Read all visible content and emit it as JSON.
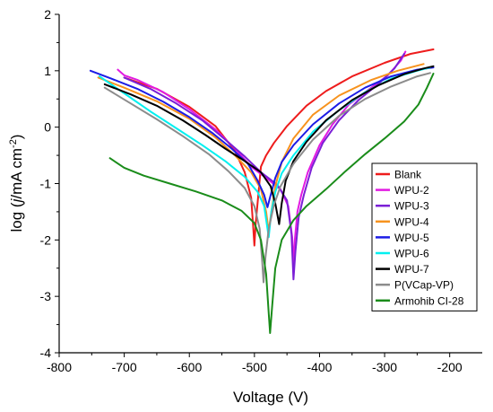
{
  "chart_data": {
    "type": "line",
    "title": "",
    "xlabel": "Voltage (V)",
    "ylabel_main": "log (",
    "ylabel_j": "j",
    "ylabel_units": "/mA cm",
    "ylabel_sup": "-2",
    "ylabel_close": ")",
    "xlim": [
      -800,
      -150
    ],
    "ylim": [
      -4,
      2
    ],
    "xticks": [
      -800,
      -700,
      -600,
      -500,
      -400,
      -300,
      -200
    ],
    "yticks": [
      -4,
      -3,
      -2,
      -1,
      0,
      1,
      2
    ],
    "grid": false,
    "legend_position": "right",
    "series": [
      {
        "name": "Blank",
        "color": "#ee1c1c",
        "points": [
          [
            -700,
            0.88
          ],
          [
            -650,
            0.68
          ],
          [
            -600,
            0.36
          ],
          [
            -560,
            0.02
          ],
          [
            -530,
            -0.42
          ],
          [
            -515,
            -0.8
          ],
          [
            -505,
            -1.25
          ],
          [
            -502,
            -1.75
          ],
          [
            -500,
            -2.1
          ],
          [
            -498,
            -1.7
          ],
          [
            -494,
            -1.2
          ],
          [
            -490,
            -0.7
          ],
          [
            -482,
            -0.5
          ],
          [
            -470,
            -0.28
          ],
          [
            -450,
            0.02
          ],
          [
            -420,
            0.38
          ],
          [
            -390,
            0.64
          ],
          [
            -350,
            0.9
          ],
          [
            -300,
            1.14
          ],
          [
            -260,
            1.3
          ],
          [
            -225,
            1.38
          ]
        ]
      },
      {
        "name": "WPU-2",
        "color": "#e21ae2",
        "points": [
          [
            -710,
            1.02
          ],
          [
            -700,
            0.92
          ],
          [
            -680,
            0.84
          ],
          [
            -640,
            0.62
          ],
          [
            -600,
            0.32
          ],
          [
            -560,
            -0.04
          ],
          [
            -530,
            -0.38
          ],
          [
            -505,
            -0.7
          ],
          [
            -480,
            -0.92
          ],
          [
            -460,
            -1.1
          ],
          [
            -448,
            -1.4
          ],
          [
            -442,
            -1.95
          ],
          [
            -440,
            -2.45
          ],
          [
            -438,
            -2.0
          ],
          [
            -434,
            -1.5
          ],
          [
            -428,
            -1.2
          ],
          [
            -418,
            -0.8
          ],
          [
            -400,
            -0.32
          ],
          [
            -380,
            0.05
          ],
          [
            -355,
            0.4
          ],
          [
            -325,
            0.66
          ],
          [
            -295,
            0.92
          ],
          [
            -275,
            1.18
          ],
          [
            -268,
            1.34
          ]
        ]
      },
      {
        "name": "WPU-3",
        "color": "#7b1fd6",
        "points": [
          [
            -700,
            0.88
          ],
          [
            -660,
            0.68
          ],
          [
            -620,
            0.42
          ],
          [
            -580,
            0.12
          ],
          [
            -545,
            -0.22
          ],
          [
            -515,
            -0.52
          ],
          [
            -490,
            -0.8
          ],
          [
            -465,
            -1.02
          ],
          [
            -450,
            -1.3
          ],
          [
            -443,
            -1.9
          ],
          [
            -440,
            -2.7
          ],
          [
            -437,
            -2.2
          ],
          [
            -432,
            -1.6
          ],
          [
            -424,
            -1.2
          ],
          [
            -412,
            -0.72
          ],
          [
            -395,
            -0.28
          ],
          [
            -370,
            0.12
          ],
          [
            -340,
            0.48
          ],
          [
            -310,
            0.76
          ],
          [
            -285,
            1.04
          ],
          [
            -270,
            1.3
          ]
        ]
      },
      {
        "name": "WPU-4",
        "color": "#f7931e",
        "points": [
          [
            -740,
            0.88
          ],
          [
            -700,
            0.7
          ],
          [
            -650,
            0.46
          ],
          [
            -600,
            0.15
          ],
          [
            -560,
            -0.18
          ],
          [
            -530,
            -0.5
          ],
          [
            -505,
            -0.8
          ],
          [
            -490,
            -1.1
          ],
          [
            -482,
            -1.5
          ],
          [
            -478,
            -1.85
          ],
          [
            -474,
            -1.5
          ],
          [
            -468,
            -1.05
          ],
          [
            -458,
            -0.62
          ],
          [
            -440,
            -0.2
          ],
          [
            -410,
            0.22
          ],
          [
            -370,
            0.56
          ],
          [
            -320,
            0.84
          ],
          [
            -280,
            1.0
          ],
          [
            -240,
            1.12
          ]
        ]
      },
      {
        "name": "WPU-5",
        "color": "#1c1ce6",
        "points": [
          [
            -752,
            1.0
          ],
          [
            -720,
            0.86
          ],
          [
            -680,
            0.68
          ],
          [
            -640,
            0.45
          ],
          [
            -600,
            0.18
          ],
          [
            -565,
            -0.1
          ],
          [
            -535,
            -0.38
          ],
          [
            -510,
            -0.65
          ],
          [
            -495,
            -0.95
          ],
          [
            -485,
            -1.2
          ],
          [
            -480,
            -1.42
          ],
          [
            -475,
            -1.2
          ],
          [
            -468,
            -0.9
          ],
          [
            -458,
            -0.62
          ],
          [
            -440,
            -0.32
          ],
          [
            -410,
            0.05
          ],
          [
            -370,
            0.42
          ],
          [
            -330,
            0.7
          ],
          [
            -290,
            0.9
          ],
          [
            -250,
            1.02
          ],
          [
            -225,
            1.06
          ]
        ]
      },
      {
        "name": "WPU-6",
        "color": "#00f0f0",
        "points": [
          [
            -738,
            0.9
          ],
          [
            -700,
            0.6
          ],
          [
            -660,
            0.28
          ],
          [
            -620,
            -0.02
          ],
          [
            -580,
            -0.32
          ],
          [
            -545,
            -0.6
          ],
          [
            -515,
            -0.88
          ],
          [
            -495,
            -1.15
          ],
          [
            -485,
            -1.4
          ],
          [
            -478,
            -1.95
          ],
          [
            -474,
            -1.5
          ],
          [
            -468,
            -1.15
          ],
          [
            -458,
            -0.82
          ],
          [
            -440,
            -0.5
          ],
          [
            -410,
            -0.08
          ],
          [
            -370,
            0.3
          ],
          [
            -330,
            0.62
          ],
          [
            -290,
            0.86
          ],
          [
            -250,
            1.0
          ],
          [
            -230,
            1.06
          ]
        ]
      },
      {
        "name": "WPU-7",
        "color": "#000000",
        "points": [
          [
            -730,
            0.76
          ],
          [
            -690,
            0.58
          ],
          [
            -650,
            0.38
          ],
          [
            -610,
            0.12
          ],
          [
            -575,
            -0.14
          ],
          [
            -545,
            -0.38
          ],
          [
            -515,
            -0.6
          ],
          [
            -490,
            -0.8
          ],
          [
            -475,
            -1.05
          ],
          [
            -468,
            -1.35
          ],
          [
            -462,
            -1.72
          ],
          [
            -458,
            -1.35
          ],
          [
            -452,
            -0.95
          ],
          [
            -440,
            -0.6
          ],
          [
            -420,
            -0.26
          ],
          [
            -390,
            0.12
          ],
          [
            -350,
            0.48
          ],
          [
            -310,
            0.74
          ],
          [
            -270,
            0.94
          ],
          [
            -240,
            1.04
          ],
          [
            -225,
            1.08
          ]
        ]
      },
      {
        "name": "P(VCap-VP)",
        "color": "#8c8c8c",
        "points": [
          [
            -730,
            0.7
          ],
          [
            -690,
            0.42
          ],
          [
            -650,
            0.14
          ],
          [
            -610,
            -0.16
          ],
          [
            -570,
            -0.48
          ],
          [
            -540,
            -0.78
          ],
          [
            -515,
            -1.08
          ],
          [
            -500,
            -1.4
          ],
          [
            -492,
            -1.8
          ],
          [
            -488,
            -2.4
          ],
          [
            -486,
            -2.75
          ],
          [
            -483,
            -2.3
          ],
          [
            -478,
            -1.8
          ],
          [
            -470,
            -1.38
          ],
          [
            -460,
            -1.05
          ],
          [
            -440,
            -0.65
          ],
          [
            -410,
            -0.22
          ],
          [
            -370,
            0.2
          ],
          [
            -330,
            0.5
          ],
          [
            -290,
            0.72
          ],
          [
            -250,
            0.9
          ],
          [
            -230,
            0.96
          ]
        ]
      },
      {
        "name": "Armohib CI-28",
        "color": "#1a8c1a",
        "points": [
          [
            -722,
            -0.55
          ],
          [
            -700,
            -0.72
          ],
          [
            -670,
            -0.86
          ],
          [
            -630,
            -1.0
          ],
          [
            -590,
            -1.14
          ],
          [
            -550,
            -1.3
          ],
          [
            -520,
            -1.48
          ],
          [
            -500,
            -1.7
          ],
          [
            -490,
            -2.0
          ],
          [
            -482,
            -2.6
          ],
          [
            -478,
            -3.3
          ],
          [
            -476,
            -3.65
          ],
          [
            -473,
            -3.2
          ],
          [
            -468,
            -2.5
          ],
          [
            -458,
            -2.0
          ],
          [
            -440,
            -1.65
          ],
          [
            -420,
            -1.4
          ],
          [
            -390,
            -1.1
          ],
          [
            -360,
            -0.78
          ],
          [
            -330,
            -0.48
          ],
          [
            -300,
            -0.2
          ],
          [
            -270,
            0.1
          ],
          [
            -248,
            0.4
          ],
          [
            -235,
            0.7
          ],
          [
            -225,
            0.95
          ]
        ]
      }
    ]
  }
}
